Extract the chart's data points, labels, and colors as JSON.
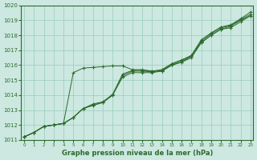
{
  "x": [
    0,
    1,
    2,
    3,
    4,
    5,
    6,
    7,
    8,
    9,
    10,
    11,
    12,
    13,
    14,
    15,
    16,
    17,
    18,
    19,
    20,
    21,
    22,
    23
  ],
  "line1": [
    1011.2,
    1011.5,
    1011.9,
    1012.0,
    1012.1,
    1015.5,
    1015.8,
    1015.85,
    1015.9,
    1015.95,
    1015.95,
    1015.7,
    1015.7,
    1015.6,
    1015.6,
    1016.0,
    1016.2,
    1016.6,
    1017.5,
    1018.0,
    1018.4,
    1018.5,
    1018.9,
    1019.3
  ],
  "line2": [
    1011.2,
    1011.5,
    1011.9,
    1012.0,
    1012.1,
    1012.5,
    1013.1,
    1013.3,
    1013.5,
    1014.0,
    1015.2,
    1015.5,
    1015.5,
    1015.5,
    1015.6,
    1016.0,
    1016.2,
    1016.5,
    1017.5,
    1018.0,
    1018.4,
    1018.6,
    1019.0,
    1019.3
  ],
  "line3": [
    1011.2,
    1011.5,
    1011.9,
    1012.0,
    1012.1,
    1012.5,
    1013.1,
    1013.35,
    1013.5,
    1014.0,
    1015.3,
    1015.6,
    1015.6,
    1015.55,
    1015.65,
    1016.05,
    1016.3,
    1016.6,
    1017.6,
    1018.1,
    1018.5,
    1018.65,
    1019.05,
    1019.4
  ],
  "line4": [
    1011.2,
    1011.5,
    1011.9,
    1012.0,
    1012.1,
    1012.5,
    1013.1,
    1013.4,
    1013.55,
    1014.05,
    1015.4,
    1015.65,
    1015.65,
    1015.6,
    1015.7,
    1016.1,
    1016.35,
    1016.65,
    1017.7,
    1018.15,
    1018.55,
    1018.7,
    1019.1,
    1019.55
  ],
  "ylim": [
    1011.0,
    1020.0
  ],
  "xlim": [
    -0.3,
    23.3
  ],
  "yticks": [
    1011,
    1012,
    1013,
    1014,
    1015,
    1016,
    1017,
    1018,
    1019,
    1020
  ],
  "xticks": [
    0,
    1,
    2,
    3,
    4,
    5,
    6,
    7,
    8,
    9,
    10,
    11,
    12,
    13,
    14,
    15,
    16,
    17,
    18,
    19,
    20,
    21,
    22,
    23
  ],
  "xlabel": "Graphe pression niveau de la mer (hPa)",
  "line_color": "#2d6a2d",
  "bg_color": "#cce8e0",
  "grid_color": "#99ccbb",
  "marker": "+",
  "marker_size": 3.5,
  "linewidth": 0.7
}
